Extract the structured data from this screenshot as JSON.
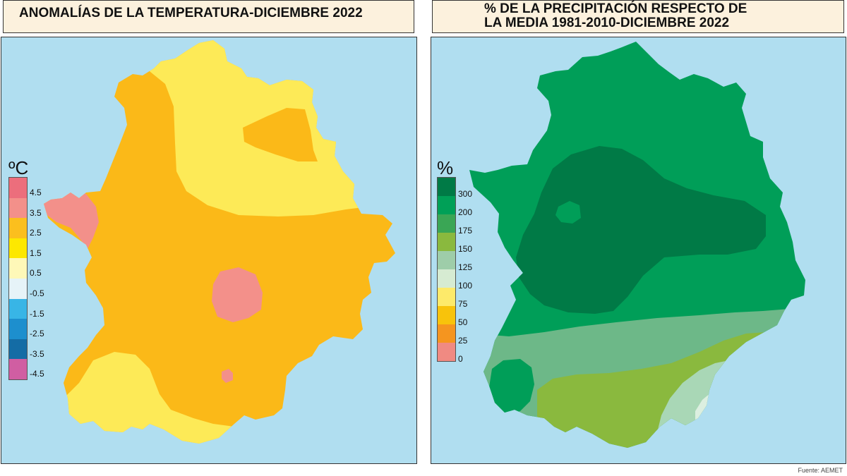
{
  "left_map": {
    "title": "ANOMALÍAS DE LA TEMPERATURA-DICIEMBRE 2022",
    "legend": {
      "unit": "ºC",
      "labels": [
        "4.5",
        "3.5",
        "2.5",
        "1.5",
        "0.5",
        "-0.5",
        "-1.5",
        "-2.5",
        "-3.5",
        "-4.5"
      ],
      "colors": [
        "#ec6e7c",
        "#f3908a",
        "#fbbf1e",
        "#fde800",
        "#fef8b8",
        "#e6f3f8",
        "#38b5e6",
        "#1d8fce",
        "#146ca5",
        "#d05ea2"
      ]
    },
    "zone_colors": {
      "sea": "#b0def0",
      "main": "#fbb918",
      "cool": "#fdea57",
      "warm": "#f3908a"
    }
  },
  "right_map": {
    "title_line1": "% DE LA PRECIPITACIÓN RESPECTO DE",
    "title_line2": "LA MEDIA 1981-2010-DICIEMBRE 2022",
    "legend": {
      "unit": "%",
      "labels": [
        "300",
        "200",
        "175",
        "150",
        "125",
        "100",
        "75",
        "50",
        "25",
        "0"
      ],
      "colors": [
        "#007a46",
        "#00a057",
        "#3aa655",
        "#8ab93e",
        "#9ecda9",
        "#d6ebd2",
        "#fdea6a",
        "#f8c30b",
        "#f5951f",
        "#f08a82"
      ]
    },
    "zone_colors": {
      "sea": "#b0def0",
      "main": "#009e58",
      "wettest": "#007a46",
      "band": "#6db888",
      "south": "#8ab93e",
      "pale": "#a9d7b6",
      "palest": "#dcefe0"
    }
  },
  "source": "Fuente: AEMET"
}
